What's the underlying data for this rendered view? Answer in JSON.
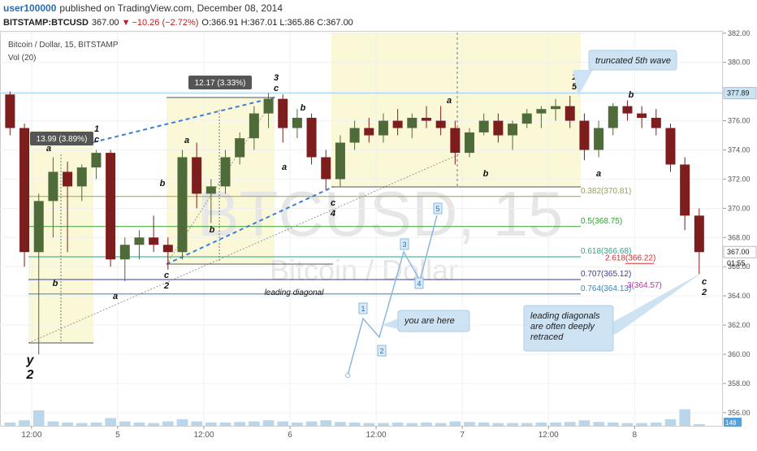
{
  "header": {
    "user": "user100000",
    "published": "published on TradingView.com, December 08, 2014",
    "symbol": "BITSTAMP:BTCUSD",
    "price": "367.00",
    "arrow": "▼",
    "change": "−10.26 (−2.72%)",
    "ohlc": [
      "O:366.91",
      "H:367.01",
      "L:365.86",
      "C:367.00"
    ]
  },
  "chart_data": {
    "type": "candlestick",
    "title": "Bitcoin / Dollar, 15, BITSTAMP",
    "volume_label": "Vol (20)",
    "watermark": [
      "BTCUSD, 15",
      "Bitcoin / Dollar"
    ],
    "x": [
      -16,
      -14,
      -12,
      -10,
      -8,
      -6,
      -4,
      -2,
      0,
      2,
      4,
      6,
      8,
      10,
      12,
      14,
      16,
      18,
      20,
      22,
      24,
      26,
      28,
      30,
      32,
      34,
      36,
      38,
      40,
      42,
      44,
      46,
      48,
      50,
      52,
      54,
      56,
      58,
      60,
      62,
      64,
      66,
      68,
      70,
      72,
      74,
      76,
      78,
      80
    ],
    "open": [
      377.8,
      375.5,
      367.0,
      370.5,
      372.5,
      371.5,
      372.8,
      373.8,
      366.5,
      367.5,
      368.0,
      367.5,
      367.0,
      373.5,
      371.0,
      371.5,
      373.5,
      374.8,
      376.5,
      377.5,
      375.5,
      376.2,
      373.5,
      372.0,
      374.5,
      375.5,
      375.0,
      376.0,
      375.5,
      376.2,
      376.0,
      375.5,
      373.8,
      375.2,
      376.0,
      375.0,
      375.8,
      376.5,
      376.8,
      377.0,
      376.0,
      374.0,
      375.5,
      377.0,
      376.5,
      376.2,
      375.5,
      373.0,
      369.5
    ],
    "high": [
      378.0,
      375.8,
      371.0,
      373.5,
      373.2,
      373.0,
      374.0,
      374.0,
      368.0,
      368.5,
      369.5,
      368.0,
      374.0,
      374.5,
      372.0,
      374.0,
      375.2,
      377.0,
      377.9,
      377.8,
      376.8,
      376.5,
      374.0,
      375.0,
      376.0,
      376.2,
      376.5,
      376.8,
      376.5,
      377.0,
      377.0,
      376.0,
      375.5,
      376.5,
      376.5,
      376.0,
      376.8,
      377.0,
      377.5,
      377.7,
      376.5,
      376.0,
      377.2,
      377.4,
      377.0,
      376.8,
      375.8,
      373.5,
      370.0
    ],
    "low": [
      375.0,
      366.0,
      360.0,
      368.0,
      367.0,
      370.5,
      372.0,
      366.0,
      365.0,
      366.5,
      367.0,
      365.8,
      366.5,
      370.0,
      369.0,
      371.0,
      373.0,
      374.0,
      375.5,
      374.5,
      374.8,
      373.0,
      371.3,
      371.5,
      374.0,
      374.5,
      374.5,
      375.0,
      374.8,
      375.5,
      375.0,
      373.0,
      373.5,
      375.0,
      374.5,
      374.0,
      375.5,
      375.5,
      376.0,
      375.5,
      373.3,
      373.5,
      375.0,
      376.0,
      375.5,
      375.0,
      372.5,
      368.5,
      365.5
    ],
    "close": [
      375.5,
      367.0,
      370.5,
      372.5,
      371.5,
      372.8,
      373.8,
      366.5,
      367.5,
      368.0,
      367.5,
      367.0,
      373.5,
      371.0,
      371.5,
      373.5,
      374.8,
      376.5,
      377.5,
      375.5,
      376.2,
      373.5,
      372.0,
      374.5,
      375.5,
      375.0,
      376.0,
      375.5,
      376.2,
      376.0,
      375.5,
      373.8,
      375.2,
      376.0,
      375.0,
      375.8,
      376.5,
      376.8,
      377.0,
      376.0,
      374.0,
      375.5,
      377.0,
      376.5,
      376.2,
      375.5,
      373.0,
      369.5,
      367.0
    ],
    "volume": [
      300,
      500,
      1400,
      400,
      300,
      250,
      300,
      700,
      400,
      300,
      250,
      400,
      600,
      400,
      300,
      300,
      350,
      400,
      500,
      400,
      300,
      400,
      500,
      350,
      300,
      250,
      250,
      300,
      250,
      300,
      250,
      400,
      350,
      300,
      250,
      250,
      250,
      300,
      300,
      350,
      500,
      350,
      300,
      250,
      250,
      300,
      600,
      1500,
      148
    ],
    "volume_ylim": [
      0,
      2500
    ],
    "up_color": "#4f6b3a",
    "down_color": "#7d1d1d",
    "grid": true,
    "xlim": [
      -16.4,
      84.3
    ],
    "ylim": [
      355.1,
      382.1
    ],
    "yticks": [
      {
        "value": 382,
        "label": "382.00"
      },
      {
        "value": 380,
        "label": "380.00"
      },
      {
        "value": 378,
        "label": "378.00"
      },
      {
        "value": 376,
        "label": "376.00"
      },
      {
        "value": 374,
        "label": "374.00"
      },
      {
        "value": 372,
        "label": "372.00"
      },
      {
        "value": 370,
        "label": "370.00"
      },
      {
        "value": 368,
        "label": "368.00"
      },
      {
        "value": 366,
        "label": "366.00"
      },
      {
        "value": 364,
        "label": "364.00"
      },
      {
        "value": 362,
        "label": "362.00"
      },
      {
        "value": 360,
        "label": "360.00"
      },
      {
        "value": 358,
        "label": "358.00"
      },
      {
        "value": 356,
        "label": "356.00"
      }
    ],
    "xticks": [
      {
        "value": -12,
        "label": "12:00"
      },
      {
        "value": 0,
        "label": "5"
      },
      {
        "value": 12,
        "label": "12:00"
      },
      {
        "value": 24,
        "label": "6"
      },
      {
        "value": 36,
        "label": "12:00"
      },
      {
        "value": 48,
        "label": "7"
      },
      {
        "value": 60,
        "label": "12:00"
      },
      {
        "value": 72,
        "label": "8"
      }
    ],
    "price_badges": [
      {
        "value": 377.89,
        "label": "377.89"
      },
      {
        "value": 367.0,
        "label": "367.00"
      }
    ],
    "countdown": "01:55",
    "fib_levels": [
      {
        "value": 370.81,
        "label": "0.382(370.81)",
        "color": "#9aa63c"
      },
      {
        "value": 368.75,
        "label": "0.5(368.75)",
        "color": "#35a035"
      },
      {
        "value": 366.68,
        "label": "0.618(366.68)",
        "color": "#23a98a"
      },
      {
        "value": 365.12,
        "label": "0.707(365.12)",
        "color": "#3a3aa8"
      },
      {
        "value": 364.13,
        "label": "0.764(364.13)",
        "color": "#2f86c8"
      }
    ],
    "ext_levels": [
      {
        "value": 366.22,
        "label": "2.618(366.22)",
        "color": "#d03030"
      },
      {
        "value": 364.57,
        "label": "3(364.57)",
        "color": "#c030b0"
      }
    ],
    "measurements": [
      "13.99 (3.89%)",
      "12.17 (3.33%)"
    ],
    "annotations": [
      "1",
      "c",
      "3",
      "c",
      "1",
      "5",
      "y",
      "2",
      "a",
      "b",
      "a",
      "c",
      "2",
      "a",
      "b",
      "b",
      "b",
      "a",
      "c",
      "4",
      "a",
      "b",
      "a",
      "b",
      "c",
      "2",
      "leading diagonal"
    ],
    "callouts": [
      [
        "truncated 5th wave"
      ],
      [
        "you are here"
      ],
      [
        "leading diagonals",
        "are often deeply",
        "retraced"
      ]
    ],
    "wave_boxes": [
      "1",
      "2",
      "3",
      "4",
      "5"
    ]
  }
}
